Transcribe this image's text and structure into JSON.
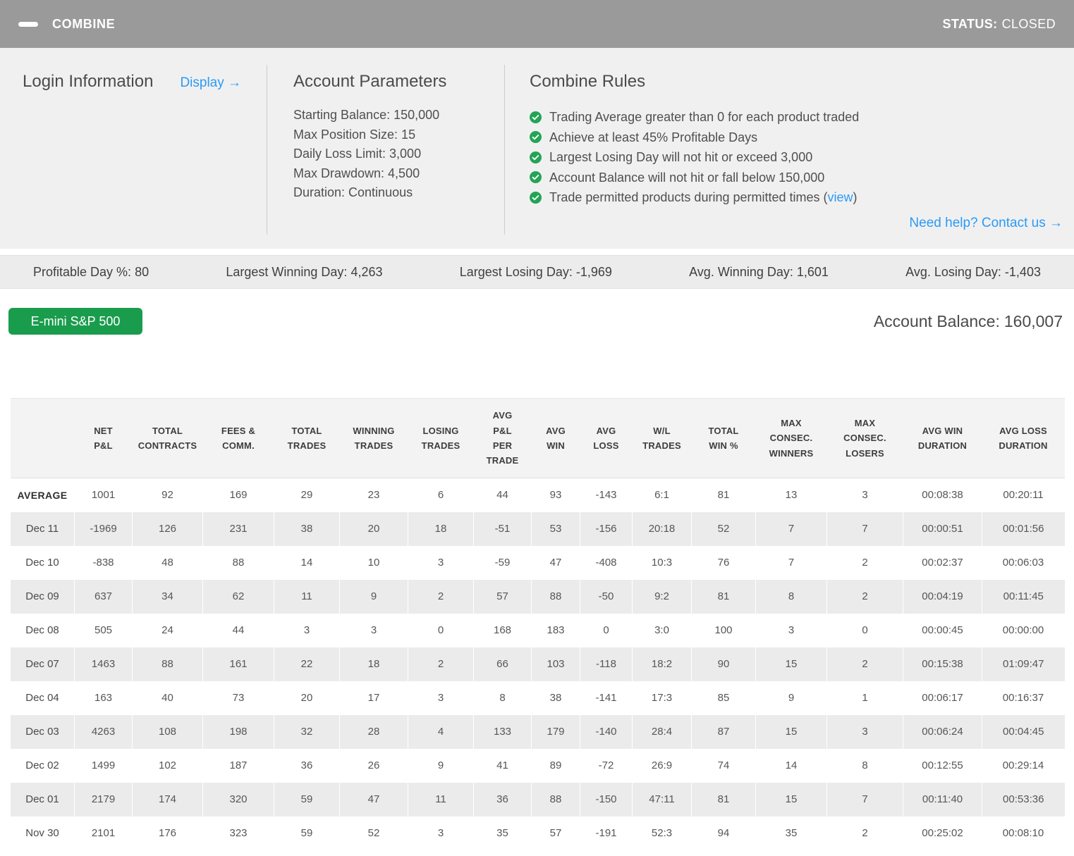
{
  "colors": {
    "accent_blue": "#2b9af3",
    "success_green": "#1a9c4d",
    "check_green": "#23a455",
    "titlebar_gray": "#9a9a9a"
  },
  "titlebar": {
    "title": "COMBINE",
    "status_label": "STATUS:",
    "status_value": "CLOSED"
  },
  "login": {
    "title": "Login Information",
    "display_link": "Display →"
  },
  "account_parameters": {
    "title": "Account Parameters",
    "items": [
      "Starting Balance: 150,000",
      "Max Position Size: 15",
      "Daily Loss Limit: 3,000",
      "Max Drawdown: 4,500",
      "Duration: Continuous"
    ]
  },
  "combine_rules": {
    "title": "Combine Rules",
    "rules": [
      {
        "text": "Trading Average greater than 0 for each product traded",
        "link": "",
        "suffix": ""
      },
      {
        "text": "Achieve at least 45% Profitable Days",
        "link": "",
        "suffix": ""
      },
      {
        "text": "Largest Losing Day will not hit or exceed 3,000",
        "link": "",
        "suffix": ""
      },
      {
        "text": "Account Balance will not hit or fall below 150,000",
        "link": "",
        "suffix": ""
      },
      {
        "text": "Trade permitted products during permitted times (",
        "link": "view",
        "suffix": ")"
      }
    ],
    "help_link": "Need help? Contact us →"
  },
  "summary_stats": [
    {
      "label": "Profitable Day %:",
      "value": "80"
    },
    {
      "label": "Largest Winning Day:",
      "value": "4,263"
    },
    {
      "label": "Largest Losing Day:",
      "value": "-1,969"
    },
    {
      "label": "Avg. Winning Day:",
      "value": "1,601"
    },
    {
      "label": "Avg. Losing Day:",
      "value": "-1,403"
    }
  ],
  "product": {
    "button_label": "E-mini S&P 500",
    "balance_label": "Account Balance:",
    "balance_value": "160,007"
  },
  "table": {
    "columns": [
      "NET\nP&L",
      "TOTAL\nCONTRACTS",
      "FEES &\nCOMM.",
      "TOTAL\nTRADES",
      "WINNING\nTRADES",
      "LOSING\nTRADES",
      "AVG\nP&L\nPER\nTRADE",
      "AVG\nWIN",
      "AVG\nLOSS",
      "W/L\nTRADES",
      "TOTAL\nWIN %",
      "MAX\nCONSEC.\nWINNERS",
      "MAX\nCONSEC.\nLOSERS",
      "AVG WIN\nDURATION",
      "AVG LOSS\nDURATION"
    ],
    "rows": [
      {
        "label": "AVERAGE",
        "values": [
          "1001",
          "92",
          "169",
          "29",
          "23",
          "6",
          "44",
          "93",
          "-143",
          "6:1",
          "81",
          "13",
          "3",
          "00:08:38",
          "00:20:11"
        ]
      },
      {
        "label": "Dec 11",
        "values": [
          "-1969",
          "126",
          "231",
          "38",
          "20",
          "18",
          "-51",
          "53",
          "-156",
          "20:18",
          "52",
          "7",
          "7",
          "00:00:51",
          "00:01:56"
        ]
      },
      {
        "label": "Dec 10",
        "values": [
          "-838",
          "48",
          "88",
          "14",
          "10",
          "3",
          "-59",
          "47",
          "-408",
          "10:3",
          "76",
          "7",
          "2",
          "00:02:37",
          "00:06:03"
        ]
      },
      {
        "label": "Dec 09",
        "values": [
          "637",
          "34",
          "62",
          "11",
          "9",
          "2",
          "57",
          "88",
          "-50",
          "9:2",
          "81",
          "8",
          "2",
          "00:04:19",
          "00:11:45"
        ]
      },
      {
        "label": "Dec 08",
        "values": [
          "505",
          "24",
          "44",
          "3",
          "3",
          "0",
          "168",
          "183",
          "0",
          "3:0",
          "100",
          "3",
          "0",
          "00:00:45",
          "00:00:00"
        ]
      },
      {
        "label": "Dec 07",
        "values": [
          "1463",
          "88",
          "161",
          "22",
          "18",
          "2",
          "66",
          "103",
          "-118",
          "18:2",
          "90",
          "15",
          "2",
          "00:15:38",
          "01:09:47"
        ]
      },
      {
        "label": "Dec 04",
        "values": [
          "163",
          "40",
          "73",
          "20",
          "17",
          "3",
          "8",
          "38",
          "-141",
          "17:3",
          "85",
          "9",
          "1",
          "00:06:17",
          "00:16:37"
        ]
      },
      {
        "label": "Dec 03",
        "values": [
          "4263",
          "108",
          "198",
          "32",
          "28",
          "4",
          "133",
          "179",
          "-140",
          "28:4",
          "87",
          "15",
          "3",
          "00:06:24",
          "00:04:45"
        ]
      },
      {
        "label": "Dec 02",
        "values": [
          "1499",
          "102",
          "187",
          "36",
          "26",
          "9",
          "41",
          "89",
          "-72",
          "26:9",
          "74",
          "14",
          "8",
          "00:12:55",
          "00:29:14"
        ]
      },
      {
        "label": "Dec 01",
        "values": [
          "2179",
          "174",
          "320",
          "59",
          "47",
          "11",
          "36",
          "88",
          "-150",
          "47:11",
          "81",
          "15",
          "7",
          "00:11:40",
          "00:53:36"
        ]
      },
      {
        "label": "Nov 30",
        "values": [
          "2101",
          "176",
          "323",
          "59",
          "52",
          "3",
          "35",
          "57",
          "-191",
          "52:3",
          "94",
          "35",
          "2",
          "00:25:02",
          "00:08:10"
        ]
      }
    ]
  }
}
